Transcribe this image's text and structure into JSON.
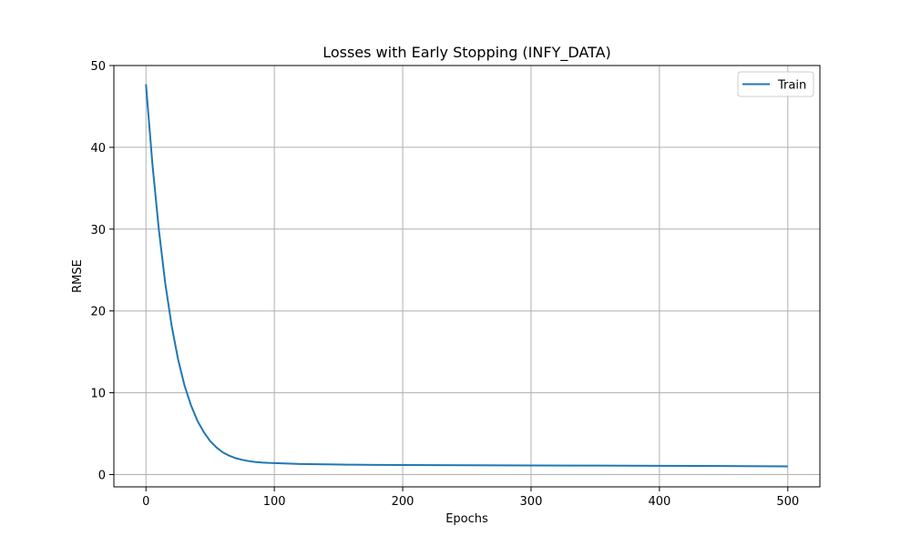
{
  "chart_data": {
    "type": "line",
    "title": "Losses with Early Stopping (INFY_DATA)",
    "xlabel": "Epochs",
    "ylabel": "RMSE",
    "xlim": [
      -25,
      525
    ],
    "ylim": [
      -1.5,
      50
    ],
    "xticks": [
      0,
      100,
      200,
      300,
      400,
      500
    ],
    "yticks": [
      0,
      10,
      20,
      30,
      40,
      50
    ],
    "grid": true,
    "legend_position": "top-right",
    "series": [
      {
        "name": "Train",
        "color": "#1f77b4",
        "x": [
          0,
          5,
          10,
          15,
          20,
          25,
          30,
          35,
          40,
          45,
          50,
          55,
          60,
          65,
          70,
          75,
          80,
          85,
          90,
          95,
          100,
          110,
          120,
          140,
          160,
          180,
          200,
          250,
          300,
          350,
          400,
          450,
          500
        ],
        "y": [
          47.7,
          38.0,
          30.0,
          23.4,
          18.2,
          14.1,
          10.9,
          8.5,
          6.6,
          5.2,
          4.1,
          3.3,
          2.7,
          2.3,
          2.0,
          1.8,
          1.65,
          1.55,
          1.48,
          1.43,
          1.4,
          1.35,
          1.3,
          1.25,
          1.21,
          1.19,
          1.17,
          1.14,
          1.12,
          1.1,
          1.07,
          1.04,
          1.0
        ]
      }
    ]
  }
}
